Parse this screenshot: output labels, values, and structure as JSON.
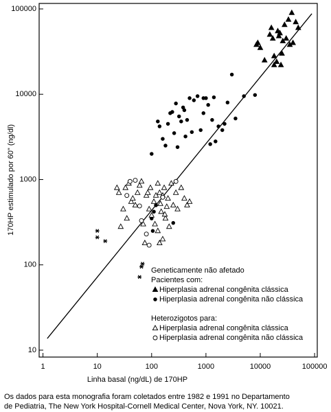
{
  "chart_data": {
    "type": "scatter",
    "x_label": "Linha basal (ng/dL) de 170HP",
    "y_label": "170HP estimulado por 60\" (ng/dl)",
    "log_x": true,
    "log_y": true,
    "xlim": [
      0.85,
      112000
    ],
    "ylim": [
      8.3,
      116000
    ],
    "xticks": [
      1,
      10,
      100,
      1000,
      10000,
      100000
    ],
    "yticks": [
      10,
      100,
      1000,
      10000,
      100000
    ],
    "legend_headings": [
      "Pacientes com:",
      "Heterozigotos para:"
    ],
    "fit_line": {
      "x": [
        1.2,
        89000
      ],
      "values": [
        13.7,
        88000
      ],
      "color": "#000000"
    },
    "series": [
      {
        "name": "Geneticamente não afetado",
        "marker": "asterisk",
        "legend_marker": false,
        "color": "#000000",
        "x": [
          10,
          10,
          14,
          65,
          60,
          68
        ],
        "values": [
          250,
          210,
          190,
          95,
          72,
          103
        ]
      },
      {
        "name": "Hiperplasia adrenal congênita clássica",
        "marker": "triangle-filled",
        "color": "#000000",
        "x": [
          8500,
          9000,
          10000,
          12000,
          15000,
          16000,
          17000,
          18000,
          20000,
          21000,
          22000,
          23000,
          25000,
          26000,
          28000,
          30000,
          35000,
          38000,
          40000,
          45000,
          50000,
          18000,
          24000,
          33000
        ],
        "values": [
          38000,
          40000,
          35000,
          25000,
          50000,
          60000,
          45000,
          22000,
          24000,
          55000,
          48000,
          52000,
          30000,
          42000,
          65000,
          45000,
          38000,
          90000,
          40000,
          70000,
          60000,
          28000,
          22000,
          75000
        ]
      },
      {
        "name": "Hiperplasia adrenal congênita não clássica",
        "marker": "circle-filled",
        "color": "#000000",
        "x": [
          100,
          130,
          140,
          160,
          180,
          200,
          220,
          240,
          260,
          280,
          300,
          320,
          350,
          380,
          400,
          420,
          450,
          500,
          550,
          600,
          700,
          800,
          900,
          1000,
          1100,
          1200,
          1300,
          1500,
          1700,
          2000,
          2200,
          2500,
          3000,
          3500,
          5000,
          8000,
          100,
          105,
          110,
          250,
          120,
          900,
          1400
        ],
        "values": [
          2000,
          4800,
          4200,
          3000,
          2500,
          4500,
          6000,
          6200,
          3500,
          7800,
          2400,
          5500,
          4800,
          7000,
          6500,
          3200,
          5000,
          9000,
          3600,
          8500,
          9500,
          3800,
          6000,
          9000,
          7500,
          2600,
          5000,
          2800,
          4200,
          3800,
          4500,
          8000,
          17000,
          5200,
          9500,
          9800,
          350,
          250,
          420,
          310,
          500,
          9000,
          9200
        ]
      },
      {
        "name": "Hiperplasia adrenal congênita clássica",
        "marker": "triangle-open",
        "color": "#000000",
        "x": [
          23,
          25,
          27,
          30,
          33,
          35,
          38,
          42,
          45,
          50,
          55,
          60,
          65,
          70,
          75,
          80,
          85,
          90,
          95,
          100,
          110,
          115,
          120,
          130,
          140,
          150,
          160,
          170,
          180,
          200,
          210,
          230,
          250,
          280,
          300,
          350,
          400,
          450,
          500,
          140,
          160,
          190,
          130,
          145,
          175
        ],
        "values": [
          800,
          700,
          280,
          450,
          800,
          350,
          900,
          550,
          600,
          500,
          700,
          850,
          950,
          300,
          180,
          650,
          700,
          450,
          800,
          380,
          550,
          300,
          650,
          250,
          700,
          420,
          200,
          800,
          350,
          600,
          280,
          900,
          500,
          700,
          450,
          800,
          600,
          500,
          550,
          180,
          650,
          480,
          900,
          520,
          390
        ]
      },
      {
        "name": "Hiperplasia adrenal congênita não clássica",
        "marker": "circle-open",
        "color": "#000000",
        "x": [
          40,
          50,
          60,
          65,
          80,
          90,
          280,
          160,
          35
        ],
        "values": [
          950,
          980,
          490,
          330,
          230,
          170,
          950,
          620,
          650
        ]
      }
    ],
    "caption_lines": [
      "Os dados para esta monografia foram coletados entre 1982 e 1991 no Departamento",
      "de Pediatria, The New York Hospital-Cornell Medical Center, Nova York, NY. 10021."
    ]
  }
}
